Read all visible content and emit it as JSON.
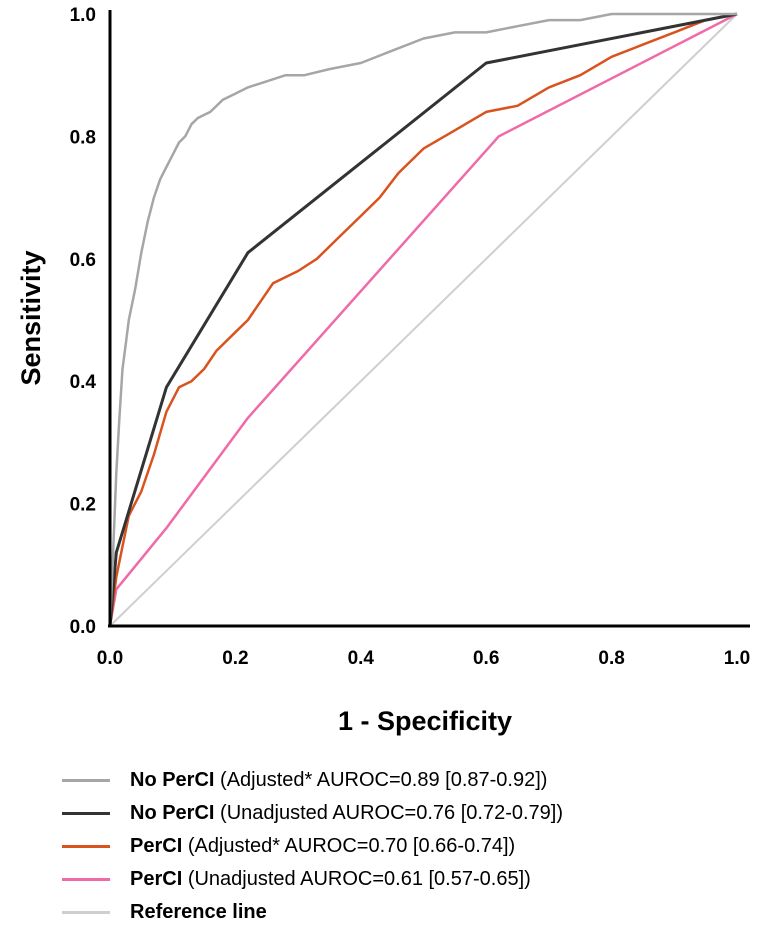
{
  "chart_data": {
    "type": "line",
    "title": "",
    "xlabel": "1 - Specificity",
    "ylabel": "Sensitivity",
    "xlim": [
      0,
      1
    ],
    "ylim": [
      0,
      1
    ],
    "xticks": [
      "0.0",
      "0.2",
      "0.4",
      "0.6",
      "0.8",
      "1.0"
    ],
    "yticks": [
      "0.0",
      "0.2",
      "0.4",
      "0.6",
      "0.8",
      "1.0"
    ],
    "grid": false,
    "legend_position": "bottom",
    "series": [
      {
        "name": "No PerCI",
        "detail": "(Adjusted* AUROC=0.89 [0.87-0.92])",
        "color": "#a6a6a6",
        "x": [
          0,
          0.005,
          0.01,
          0.015,
          0.02,
          0.025,
          0.03,
          0.04,
          0.05,
          0.06,
          0.07,
          0.08,
          0.09,
          0.1,
          0.11,
          0.12,
          0.13,
          0.14,
          0.16,
          0.18,
          0.2,
          0.22,
          0.25,
          0.28,
          0.31,
          0.35,
          0.4,
          0.45,
          0.5,
          0.55,
          0.6,
          0.65,
          0.7,
          0.75,
          0.8,
          0.85,
          0.9,
          0.95,
          1.0
        ],
        "y": [
          0,
          0.12,
          0.25,
          0.34,
          0.42,
          0.46,
          0.5,
          0.55,
          0.61,
          0.66,
          0.7,
          0.73,
          0.75,
          0.77,
          0.79,
          0.8,
          0.82,
          0.83,
          0.84,
          0.86,
          0.87,
          0.88,
          0.89,
          0.9,
          0.9,
          0.91,
          0.92,
          0.94,
          0.96,
          0.97,
          0.97,
          0.98,
          0.99,
          0.99,
          1.0,
          1.0,
          1.0,
          1.0,
          1.0
        ]
      },
      {
        "name": "No PerCI",
        "detail": "(Unadjusted AUROC=0.76 [0.72-0.79])",
        "color": "#333333",
        "x": [
          0,
          0.01,
          0.09,
          0.22,
          0.6,
          1.0
        ],
        "y": [
          0,
          0.12,
          0.39,
          0.61,
          0.92,
          1.0
        ]
      },
      {
        "name": "PerCI",
        "detail": "(Adjusted* AUROC=0.70 [0.66-0.74])",
        "color": "#d9531e",
        "x": [
          0,
          0.01,
          0.02,
          0.03,
          0.05,
          0.07,
          0.09,
          0.11,
          0.13,
          0.15,
          0.17,
          0.2,
          0.22,
          0.24,
          0.26,
          0.3,
          0.33,
          0.36,
          0.4,
          0.43,
          0.46,
          0.5,
          0.55,
          0.6,
          0.65,
          0.7,
          0.75,
          0.8,
          0.85,
          0.9,
          0.95,
          1.0
        ],
        "y": [
          0,
          0.08,
          0.13,
          0.18,
          0.22,
          0.28,
          0.35,
          0.39,
          0.4,
          0.42,
          0.45,
          0.48,
          0.5,
          0.53,
          0.56,
          0.58,
          0.6,
          0.63,
          0.67,
          0.7,
          0.74,
          0.78,
          0.81,
          0.84,
          0.85,
          0.88,
          0.9,
          0.93,
          0.95,
          0.97,
          0.99,
          1.0
        ]
      },
      {
        "name": "PerCI",
        "detail": "(Unadjusted AUROC=0.61 [0.57-0.65])",
        "color": "#f06aa8",
        "x": [
          0,
          0.01,
          0.09,
          0.22,
          0.62,
          1.0
        ],
        "y": [
          0,
          0.06,
          0.16,
          0.34,
          0.8,
          1.0
        ]
      },
      {
        "name": "Reference line",
        "detail": "",
        "color": "#cfcfcf",
        "x": [
          0,
          1
        ],
        "y": [
          0,
          1
        ]
      }
    ]
  }
}
